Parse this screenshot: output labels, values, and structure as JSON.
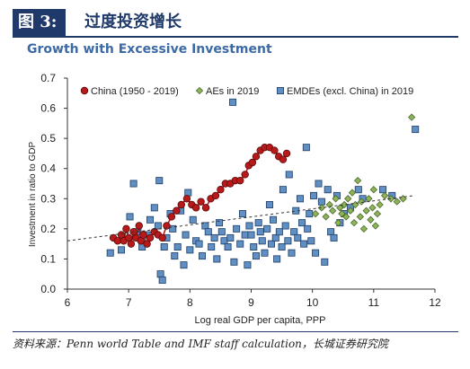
{
  "figure": {
    "number": "图 3:",
    "title": "过度投资增长"
  },
  "source_note": "资料来源：Penn world Table and IMF staff calculation，长城证券研究院",
  "colors": {
    "header_bg": "#1f3a6a",
    "chart_title": "#3b6aa6",
    "china": "#b8191b",
    "aes": "#8fb35a",
    "emdes": "#5f8fc3",
    "trend": "#333333"
  },
  "chart_data": {
    "type": "scatter",
    "title": "Growth with Excessive Investment",
    "xlabel": "Log real GDP per capita, PPP",
    "ylabel": "Investment in ratio to GDP",
    "xlim": [
      6,
      12
    ],
    "ylim": [
      0.0,
      0.7
    ],
    "xticks": [
      "6",
      "7",
      "8",
      "9",
      "10",
      "11",
      "12"
    ],
    "yticks": [
      "0.0",
      "0.1",
      "0.2",
      "0.3",
      "0.4",
      "0.5",
      "0.6",
      "0.7"
    ],
    "grid": false,
    "legend_position": "top",
    "series": [
      {
        "name": "China (1950 - 2019)",
        "marker": "circle",
        "connected": true,
        "color": "#b8191b",
        "points": [
          [
            6.75,
            0.17
          ],
          [
            6.82,
            0.16
          ],
          [
            6.88,
            0.18
          ],
          [
            6.92,
            0.16
          ],
          [
            6.96,
            0.2
          ],
          [
            7.0,
            0.17
          ],
          [
            7.04,
            0.15
          ],
          [
            7.08,
            0.19
          ],
          [
            7.12,
            0.17
          ],
          [
            7.17,
            0.21
          ],
          [
            7.2,
            0.16
          ],
          [
            7.24,
            0.18
          ],
          [
            7.3,
            0.15
          ],
          [
            7.35,
            0.17
          ],
          [
            7.42,
            0.19
          ],
          [
            7.48,
            0.18
          ],
          [
            7.55,
            0.17
          ],
          [
            7.62,
            0.21
          ],
          [
            7.7,
            0.24
          ],
          [
            7.78,
            0.26
          ],
          [
            7.86,
            0.28
          ],
          [
            7.95,
            0.3
          ],
          [
            8.03,
            0.28
          ],
          [
            8.1,
            0.27
          ],
          [
            8.18,
            0.29
          ],
          [
            8.26,
            0.27
          ],
          [
            8.34,
            0.3
          ],
          [
            8.42,
            0.31
          ],
          [
            8.5,
            0.33
          ],
          [
            8.58,
            0.35
          ],
          [
            8.66,
            0.35
          ],
          [
            8.74,
            0.36
          ],
          [
            8.82,
            0.36
          ],
          [
            8.9,
            0.38
          ],
          [
            8.96,
            0.41
          ],
          [
            9.02,
            0.42
          ],
          [
            9.08,
            0.44
          ],
          [
            9.15,
            0.46
          ],
          [
            9.22,
            0.47
          ],
          [
            9.3,
            0.47
          ],
          [
            9.38,
            0.46
          ],
          [
            9.45,
            0.44
          ],
          [
            9.52,
            0.43
          ],
          [
            9.58,
            0.45
          ]
        ]
      },
      {
        "name": "AEs in 2019",
        "marker": "diamond",
        "color": "#8fb35a",
        "points": [
          [
            10.05,
            0.25
          ],
          [
            10.15,
            0.27
          ],
          [
            10.22,
            0.24
          ],
          [
            10.28,
            0.28
          ],
          [
            10.33,
            0.26
          ],
          [
            10.38,
            0.3
          ],
          [
            10.42,
            0.22
          ],
          [
            10.45,
            0.27
          ],
          [
            10.48,
            0.25
          ],
          [
            10.52,
            0.28
          ],
          [
            10.55,
            0.24
          ],
          [
            10.58,
            0.3
          ],
          [
            10.62,
            0.26
          ],
          [
            10.65,
            0.32
          ],
          [
            10.68,
            0.22
          ],
          [
            10.7,
            0.28
          ],
          [
            10.74,
            0.36
          ],
          [
            10.78,
            0.24
          ],
          [
            10.8,
            0.29
          ],
          [
            10.84,
            0.2
          ],
          [
            10.88,
            0.26
          ],
          [
            10.92,
            0.3
          ],
          [
            10.95,
            0.23
          ],
          [
            10.98,
            0.27
          ],
          [
            11.0,
            0.33
          ],
          [
            11.03,
            0.21
          ],
          [
            11.06,
            0.25
          ],
          [
            11.1,
            0.28
          ],
          [
            11.18,
            0.31
          ],
          [
            11.28,
            0.3
          ],
          [
            11.38,
            0.29
          ],
          [
            11.48,
            0.3
          ],
          [
            11.62,
            0.57
          ]
        ]
      },
      {
        "name": "EMDEs (excl. China) in 2019",
        "marker": "square",
        "color": "#5f8fc3",
        "points": [
          [
            6.7,
            0.12
          ],
          [
            6.88,
            0.13
          ],
          [
            7.02,
            0.24
          ],
          [
            7.08,
            0.35
          ],
          [
            7.15,
            0.19
          ],
          [
            7.22,
            0.14
          ],
          [
            7.3,
            0.18
          ],
          [
            7.35,
            0.23
          ],
          [
            7.42,
            0.27
          ],
          [
            7.48,
            0.21
          ],
          [
            7.5,
            0.36
          ],
          [
            7.52,
            0.05
          ],
          [
            7.55,
            0.03
          ],
          [
            7.58,
            0.14
          ],
          [
            7.62,
            0.17
          ],
          [
            7.68,
            0.25
          ],
          [
            7.72,
            0.2
          ],
          [
            7.75,
            0.11
          ],
          [
            7.8,
            0.14
          ],
          [
            7.85,
            0.26
          ],
          [
            7.9,
            0.08
          ],
          [
            7.93,
            0.18
          ],
          [
            7.97,
            0.32
          ],
          [
            8.0,
            0.13
          ],
          [
            8.05,
            0.23
          ],
          [
            8.1,
            0.16
          ],
          [
            8.15,
            0.15
          ],
          [
            8.2,
            0.11
          ],
          [
            8.25,
            0.21
          ],
          [
            8.3,
            0.19
          ],
          [
            8.35,
            0.14
          ],
          [
            8.4,
            0.17
          ],
          [
            8.44,
            0.1
          ],
          [
            8.48,
            0.22
          ],
          [
            8.52,
            0.19
          ],
          [
            8.56,
            0.16
          ],
          [
            8.62,
            0.14
          ],
          [
            8.66,
            0.17
          ],
          [
            8.7,
            0.62
          ],
          [
            8.72,
            0.09
          ],
          [
            8.76,
            0.2
          ],
          [
            8.82,
            0.15
          ],
          [
            8.86,
            0.25
          ],
          [
            8.9,
            0.18
          ],
          [
            8.94,
            0.08
          ],
          [
            8.97,
            0.21
          ],
          [
            9.0,
            0.18
          ],
          [
            9.04,
            0.14
          ],
          [
            9.08,
            0.11
          ],
          [
            9.12,
            0.22
          ],
          [
            9.15,
            0.19
          ],
          [
            9.18,
            0.16
          ],
          [
            9.22,
            0.12
          ],
          [
            9.26,
            0.2
          ],
          [
            9.3,
            0.28
          ],
          [
            9.33,
            0.15
          ],
          [
            9.36,
            0.23
          ],
          [
            9.4,
            0.17
          ],
          [
            9.42,
            0.1
          ],
          [
            9.46,
            0.19
          ],
          [
            9.5,
            0.14
          ],
          [
            9.52,
            0.33
          ],
          [
            9.56,
            0.21
          ],
          [
            9.6,
            0.16
          ],
          [
            9.62,
            0.38
          ],
          [
            9.66,
            0.12
          ],
          [
            9.7,
            0.19
          ],
          [
            9.73,
            0.26
          ],
          [
            9.76,
            0.17
          ],
          [
            9.8,
            0.3
          ],
          [
            9.83,
            0.22
          ],
          [
            9.86,
            0.15
          ],
          [
            9.9,
            0.47
          ],
          [
            9.92,
            0.2
          ],
          [
            9.95,
            0.25
          ],
          [
            9.98,
            0.16
          ],
          [
            10.02,
            0.31
          ],
          [
            10.05,
            0.12
          ],
          [
            10.1,
            0.35
          ],
          [
            10.15,
            0.29
          ],
          [
            10.2,
            0.09
          ],
          [
            10.25,
            0.33
          ],
          [
            10.3,
            0.19
          ],
          [
            10.35,
            0.17
          ],
          [
            10.4,
            0.31
          ],
          [
            10.45,
            0.22
          ],
          [
            10.52,
            0.25
          ],
          [
            10.62,
            0.27
          ],
          [
            10.75,
            0.33
          ],
          [
            10.82,
            0.3
          ],
          [
            11.15,
            0.33
          ],
          [
            11.3,
            0.31
          ],
          [
            11.68,
            0.53
          ]
        ]
      }
    ],
    "trendline": {
      "x": [
        6.0,
        11.65
      ],
      "y": [
        0.16,
        0.31
      ]
    }
  }
}
